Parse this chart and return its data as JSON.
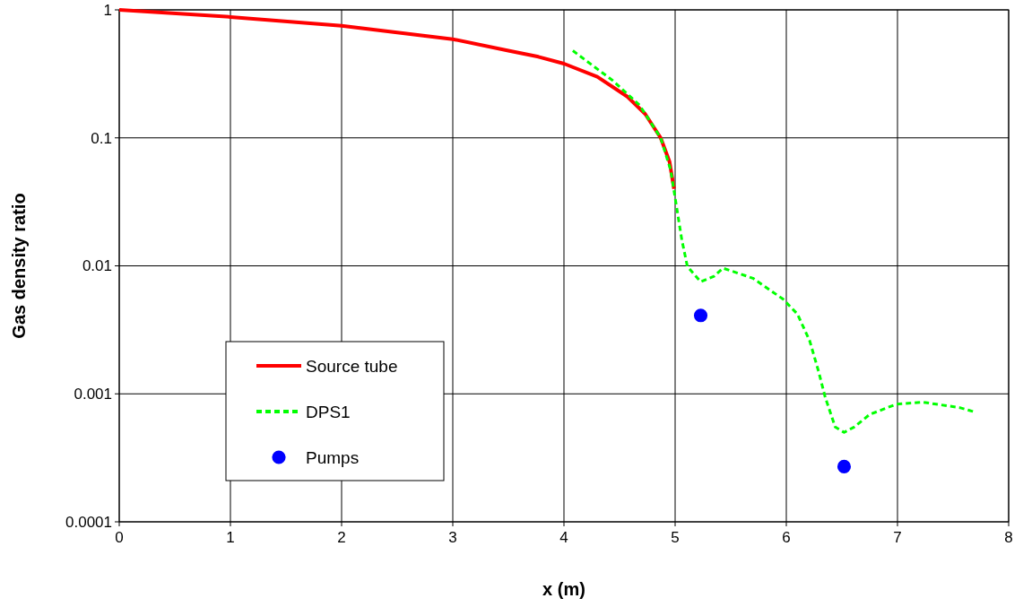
{
  "chart_data": {
    "type": "line",
    "xlabel": "x (m)",
    "ylabel": "Gas density ratio",
    "log": "y",
    "grid": true,
    "legend": "bottom left",
    "xlim": [
      0,
      8
    ],
    "xticks": [
      0,
      1,
      2,
      3,
      4,
      5,
      6,
      7,
      8
    ],
    "ylim": [
      0.0001,
      1
    ],
    "yticks": [
      0.0001,
      0.001,
      0.01,
      0.1,
      1
    ],
    "series": [
      {
        "name": "Source tube",
        "color": "#ff0000",
        "line_style": "solid",
        "x": [
          0,
          1,
          2,
          3,
          3.5,
          3.77,
          4,
          4.3,
          4.57,
          4.73,
          4.87,
          4.95,
          4.99
        ],
        "values": [
          1,
          0.88,
          0.75,
          0.59,
          0.48,
          0.43,
          0.38,
          0.3,
          0.21,
          0.154,
          0.1,
          0.065,
          0.04
        ]
      },
      {
        "name": "DPS1",
        "color": "#00ff00",
        "line_style": "dashed",
        "x": [
          4.08,
          4.44,
          4.68,
          4.87,
          4.96,
          5.0,
          5.06,
          5.11,
          5.23,
          5.35,
          5.43,
          5.7,
          5.97,
          6.1,
          6.21,
          6.29,
          6.35,
          6.44,
          6.52,
          6.61,
          6.75,
          6.99,
          7.23,
          7.56,
          7.7
        ],
        "values": [
          0.48,
          0.28,
          0.18,
          0.1,
          0.056,
          0.034,
          0.016,
          0.0099,
          0.0075,
          0.0083,
          0.0096,
          0.008,
          0.0055,
          0.0042,
          0.0026,
          0.0015,
          0.00094,
          0.00055,
          0.0005,
          0.00055,
          0.00069,
          0.00083,
          0.00086,
          0.00078,
          0.00072
        ]
      },
      {
        "name": "Pumps",
        "type": "scatter",
        "marker": "circle",
        "color": "#0000ff",
        "x": [
          5.23,
          6.52
        ],
        "values": [
          0.0041,
          0.00027
        ]
      }
    ]
  }
}
